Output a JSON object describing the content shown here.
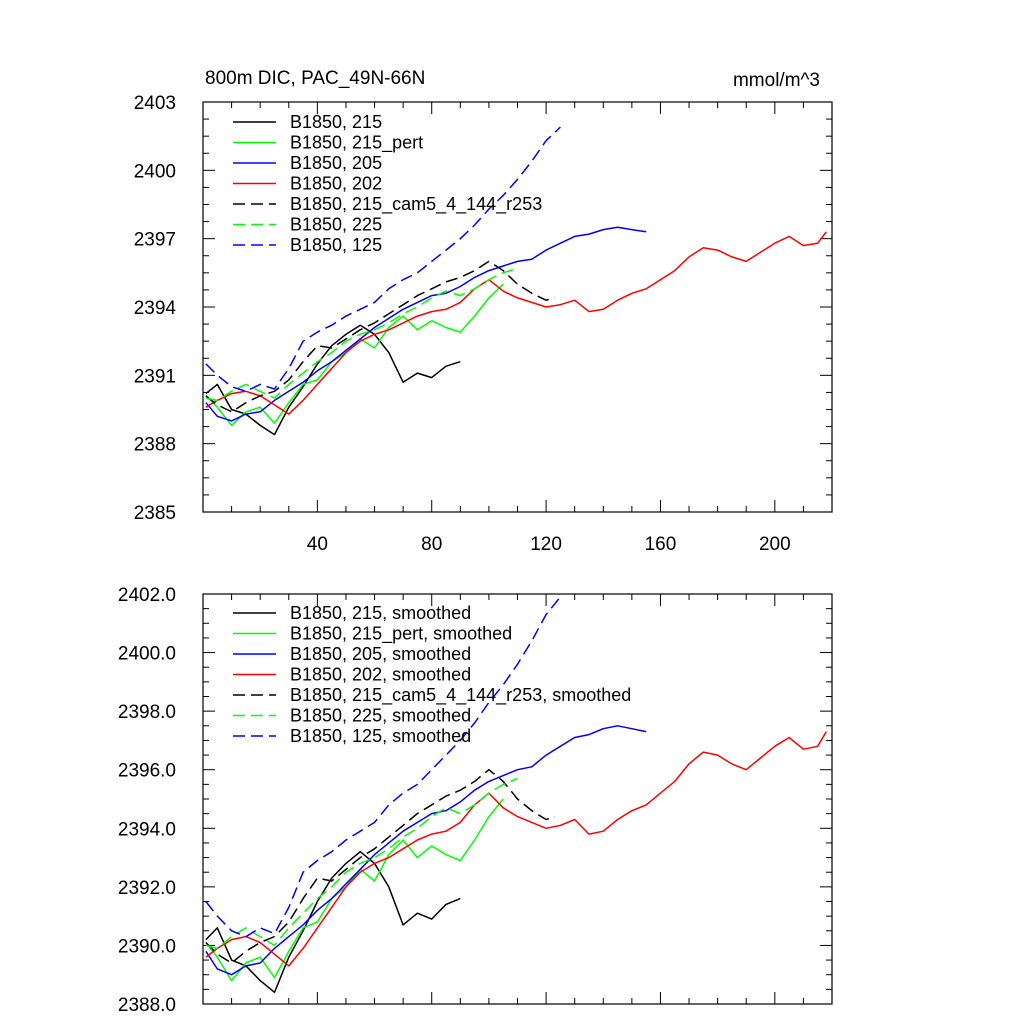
{
  "chart_data": [
    {
      "type": "line",
      "title": "800m DIC, PAC_49N-66N",
      "units": "mmol/m^3",
      "xlim": [
        0,
        220
      ],
      "ylim": [
        2385,
        2403
      ],
      "xticks": [
        40,
        80,
        120,
        160,
        200
      ],
      "yticks": [
        2385,
        2388,
        2391,
        2394,
        2397,
        2400,
        2403
      ],
      "ytick_labels": [
        "2385",
        "2388",
        "2391",
        "2394",
        "2397",
        "2400",
        "2403"
      ],
      "legend_position": "top-left",
      "series": [
        {
          "name": "B1850, 215",
          "color": "#000000",
          "dash": "solid",
          "x": [
            1,
            5,
            10,
            15,
            20,
            25,
            30,
            35,
            40,
            45,
            50,
            55,
            60,
            65,
            70,
            75,
            80,
            85,
            90
          ],
          "values": [
            2390.2,
            2390.6,
            2389.5,
            2389.3,
            2388.8,
            2388.4,
            2389.6,
            2390.5,
            2391.5,
            2392.3,
            2392.8,
            2393.2,
            2392.8,
            2392.0,
            2390.7,
            2391.1,
            2390.9,
            2391.4,
            2391.6
          ]
        },
        {
          "name": "B1850, 215_pert",
          "color": "#00ff00",
          "dash": "solid",
          "x": [
            1,
            5,
            10,
            15,
            20,
            25,
            30,
            35,
            40,
            45,
            50,
            55,
            60,
            65,
            70,
            75,
            80,
            85,
            90,
            95,
            100,
            105
          ],
          "values": [
            2390.1,
            2389.6,
            2388.8,
            2389.4,
            2389.6,
            2388.9,
            2389.8,
            2390.6,
            2390.8,
            2391.6,
            2392.0,
            2392.6,
            2392.2,
            2393.1,
            2393.6,
            2393.0,
            2393.4,
            2393.1,
            2392.9,
            2393.6,
            2394.4,
            2395.0
          ]
        },
        {
          "name": "B1850, 205",
          "color": "#0000ff",
          "dash": "solid",
          "x": [
            1,
            5,
            10,
            15,
            20,
            25,
            30,
            35,
            40,
            45,
            50,
            55,
            60,
            65,
            70,
            75,
            80,
            85,
            90,
            95,
            100,
            105,
            110,
            115,
            120,
            125,
            130,
            135,
            140,
            145,
            150,
            155
          ],
          "values": [
            2389.8,
            2389.2,
            2389.0,
            2389.3,
            2389.4,
            2389.9,
            2390.3,
            2390.7,
            2391.2,
            2391.6,
            2392.1,
            2392.6,
            2393.1,
            2393.5,
            2393.9,
            2394.2,
            2394.5,
            2394.6,
            2394.9,
            2395.3,
            2395.6,
            2395.8,
            2396.0,
            2396.1,
            2396.5,
            2396.8,
            2397.1,
            2397.2,
            2397.4,
            2397.5,
            2397.4,
            2397.3
          ]
        },
        {
          "name": "B1850, 202",
          "color": "#ff0000",
          "dash": "solid",
          "x": [
            1,
            5,
            10,
            15,
            20,
            25,
            30,
            35,
            40,
            45,
            50,
            55,
            60,
            65,
            70,
            75,
            80,
            85,
            90,
            95,
            100,
            105,
            110,
            115,
            120,
            125,
            130,
            135,
            140,
            145,
            150,
            155,
            160,
            165,
            170,
            175,
            180,
            185,
            190,
            195,
            200,
            205,
            210,
            215,
            218
          ],
          "values": [
            2389.6,
            2389.9,
            2390.2,
            2390.3,
            2390.1,
            2389.7,
            2389.3,
            2389.9,
            2390.6,
            2391.3,
            2392.0,
            2392.5,
            2392.8,
            2393.0,
            2393.3,
            2393.6,
            2393.8,
            2393.9,
            2394.2,
            2394.8,
            2395.2,
            2394.7,
            2394.4,
            2394.2,
            2394.0,
            2394.1,
            2394.3,
            2393.8,
            2393.9,
            2394.3,
            2394.6,
            2394.8,
            2395.2,
            2395.6,
            2396.2,
            2396.6,
            2396.5,
            2396.2,
            2396.0,
            2396.4,
            2396.8,
            2397.1,
            2396.7,
            2396.8,
            2397.3
          ]
        },
        {
          "name": "B1850, 215_cam5_4_144_r253",
          "color": "#000000",
          "dash": "dashed",
          "x": [
            1,
            5,
            10,
            15,
            20,
            25,
            30,
            35,
            40,
            45,
            50,
            55,
            60,
            65,
            70,
            75,
            80,
            85,
            90,
            95,
            100,
            105,
            110,
            115,
            120,
            123
          ],
          "values": [
            2390.1,
            2389.7,
            2389.4,
            2389.8,
            2390.1,
            2390.3,
            2390.8,
            2391.6,
            2392.3,
            2392.2,
            2392.6,
            2393.0,
            2393.3,
            2393.7,
            2394.1,
            2394.5,
            2394.8,
            2395.1,
            2395.3,
            2395.6,
            2396.0,
            2395.6,
            2395.0,
            2394.6,
            2394.3,
            2394.4
          ]
        },
        {
          "name": "B1850, 225",
          "color": "#00ff00",
          "dash": "dashed",
          "x": [
            1,
            5,
            10,
            15,
            20,
            25,
            30,
            35,
            40,
            45,
            50,
            55,
            60,
            65,
            70,
            75,
            80,
            85,
            90,
            95,
            100,
            105,
            110
          ],
          "values": [
            2390.0,
            2389.9,
            2390.3,
            2390.6,
            2390.3,
            2390.0,
            2390.6,
            2391.1,
            2391.6,
            2392.0,
            2392.5,
            2392.8,
            2393.0,
            2393.3,
            2393.7,
            2394.0,
            2394.4,
            2394.7,
            2394.5,
            2394.8,
            2395.2,
            2395.5,
            2395.7
          ]
        },
        {
          "name": "B1850, 125",
          "color": "#0000ff",
          "dash": "dashed",
          "x": [
            1,
            5,
            10,
            15,
            20,
            25,
            30,
            35,
            40,
            45,
            50,
            55,
            60,
            65,
            70,
            75,
            80,
            85,
            90,
            95,
            100,
            105,
            110,
            115,
            120,
            125
          ],
          "values": [
            2391.5,
            2391.0,
            2390.5,
            2390.3,
            2390.6,
            2390.4,
            2391.3,
            2392.5,
            2392.9,
            2393.2,
            2393.6,
            2393.9,
            2394.2,
            2394.8,
            2395.2,
            2395.5,
            2396.0,
            2396.5,
            2397.0,
            2397.6,
            2398.3,
            2398.9,
            2399.6,
            2400.4,
            2401.3,
            2401.9
          ]
        }
      ]
    },
    {
      "type": "line",
      "title": "",
      "units": "",
      "xlim": [
        0,
        220
      ],
      "ylim": [
        2388.0,
        2402.0
      ],
      "xticks": [
        40,
        80,
        120,
        160,
        200
      ],
      "yticks": [
        2388.0,
        2390.0,
        2392.0,
        2394.0,
        2396.0,
        2398.0,
        2400.0,
        2402.0
      ],
      "ytick_labels": [
        "2388.0",
        "2390.0",
        "2392.0",
        "2394.0",
        "2396.0",
        "2398.0",
        "2400.0",
        "2402.0"
      ],
      "legend_position": "top-left",
      "series": [
        {
          "name": "B1850, 215, smoothed",
          "color": "#000000",
          "dash": "solid",
          "x": [
            1,
            5,
            10,
            15,
            20,
            25,
            30,
            35,
            40,
            45,
            50,
            55,
            60,
            65,
            70,
            75,
            80,
            85,
            90
          ],
          "values": [
            2390.2,
            2390.6,
            2389.5,
            2389.3,
            2388.8,
            2388.4,
            2389.6,
            2390.5,
            2391.5,
            2392.3,
            2392.8,
            2393.2,
            2392.8,
            2392.0,
            2390.7,
            2391.1,
            2390.9,
            2391.4,
            2391.6
          ]
        },
        {
          "name": "B1850, 215_pert, smoothed",
          "color": "#00ff00",
          "dash": "solid",
          "x": [
            1,
            5,
            10,
            15,
            20,
            25,
            30,
            35,
            40,
            45,
            50,
            55,
            60,
            65,
            70,
            75,
            80,
            85,
            90,
            95,
            100,
            105
          ],
          "values": [
            2390.1,
            2389.6,
            2388.8,
            2389.4,
            2389.6,
            2388.9,
            2389.8,
            2390.6,
            2390.8,
            2391.6,
            2392.0,
            2392.6,
            2392.2,
            2393.1,
            2393.6,
            2393.0,
            2393.4,
            2393.1,
            2392.9,
            2393.6,
            2394.4,
            2395.0
          ]
        },
        {
          "name": "B1850, 205, smoothed",
          "color": "#0000ff",
          "dash": "solid",
          "x": [
            1,
            5,
            10,
            15,
            20,
            25,
            30,
            35,
            40,
            45,
            50,
            55,
            60,
            65,
            70,
            75,
            80,
            85,
            90,
            95,
            100,
            105,
            110,
            115,
            120,
            125,
            130,
            135,
            140,
            145,
            150,
            155
          ],
          "values": [
            2389.8,
            2389.2,
            2389.0,
            2389.3,
            2389.4,
            2389.9,
            2390.3,
            2390.7,
            2391.2,
            2391.6,
            2392.1,
            2392.6,
            2393.1,
            2393.5,
            2393.9,
            2394.2,
            2394.5,
            2394.6,
            2394.9,
            2395.3,
            2395.6,
            2395.8,
            2396.0,
            2396.1,
            2396.5,
            2396.8,
            2397.1,
            2397.2,
            2397.4,
            2397.5,
            2397.4,
            2397.3
          ]
        },
        {
          "name": "B1850, 202, smoothed",
          "color": "#ff0000",
          "dash": "solid",
          "x": [
            1,
            5,
            10,
            15,
            20,
            25,
            30,
            35,
            40,
            45,
            50,
            55,
            60,
            65,
            70,
            75,
            80,
            85,
            90,
            95,
            100,
            105,
            110,
            115,
            120,
            125,
            130,
            135,
            140,
            145,
            150,
            155,
            160,
            165,
            170,
            175,
            180,
            185,
            190,
            195,
            200,
            205,
            210,
            215,
            218
          ],
          "values": [
            2389.6,
            2389.9,
            2390.2,
            2390.3,
            2390.1,
            2389.7,
            2389.3,
            2389.9,
            2390.6,
            2391.3,
            2392.0,
            2392.5,
            2392.8,
            2393.0,
            2393.3,
            2393.6,
            2393.8,
            2393.9,
            2394.2,
            2394.8,
            2395.2,
            2394.7,
            2394.4,
            2394.2,
            2394.0,
            2394.1,
            2394.3,
            2393.8,
            2393.9,
            2394.3,
            2394.6,
            2394.8,
            2395.2,
            2395.6,
            2396.2,
            2396.6,
            2396.5,
            2396.2,
            2396.0,
            2396.4,
            2396.8,
            2397.1,
            2396.7,
            2396.8,
            2397.3
          ]
        },
        {
          "name": "B1850, 215_cam5_4_144_r253, smoothed",
          "color": "#000000",
          "dash": "dashed",
          "x": [
            1,
            5,
            10,
            15,
            20,
            25,
            30,
            35,
            40,
            45,
            50,
            55,
            60,
            65,
            70,
            75,
            80,
            85,
            90,
            95,
            100,
            105,
            110,
            115,
            120,
            123
          ],
          "values": [
            2390.1,
            2389.7,
            2389.4,
            2389.8,
            2390.1,
            2390.3,
            2390.8,
            2391.6,
            2392.3,
            2392.2,
            2392.6,
            2393.0,
            2393.3,
            2393.7,
            2394.1,
            2394.5,
            2394.8,
            2395.1,
            2395.3,
            2395.6,
            2396.0,
            2395.6,
            2395.0,
            2394.6,
            2394.3,
            2394.4
          ]
        },
        {
          "name": "B1850, 225, smoothed",
          "color": "#00ff00",
          "dash": "dashed",
          "x": [
            1,
            5,
            10,
            15,
            20,
            25,
            30,
            35,
            40,
            45,
            50,
            55,
            60,
            65,
            70,
            75,
            80,
            85,
            90,
            95,
            100,
            105,
            110
          ],
          "values": [
            2390.0,
            2389.9,
            2390.3,
            2390.6,
            2390.3,
            2390.0,
            2390.6,
            2391.1,
            2391.6,
            2392.0,
            2392.5,
            2392.8,
            2393.0,
            2393.3,
            2393.7,
            2394.0,
            2394.4,
            2394.7,
            2394.5,
            2394.8,
            2395.2,
            2395.5,
            2395.7
          ]
        },
        {
          "name": "B1850, 125, smoothed",
          "color": "#0000ff",
          "dash": "dashed",
          "x": [
            1,
            5,
            10,
            15,
            20,
            25,
            30,
            35,
            40,
            45,
            50,
            55,
            60,
            65,
            70,
            75,
            80,
            85,
            90,
            95,
            100,
            105,
            110,
            115,
            120,
            125
          ],
          "values": [
            2391.5,
            2391.0,
            2390.5,
            2390.3,
            2390.6,
            2390.4,
            2391.3,
            2392.5,
            2392.9,
            2393.2,
            2393.6,
            2393.9,
            2394.2,
            2394.8,
            2395.2,
            2395.5,
            2396.0,
            2396.5,
            2397.0,
            2397.6,
            2398.3,
            2398.9,
            2399.6,
            2400.4,
            2401.3,
            2401.9
          ]
        }
      ]
    }
  ]
}
